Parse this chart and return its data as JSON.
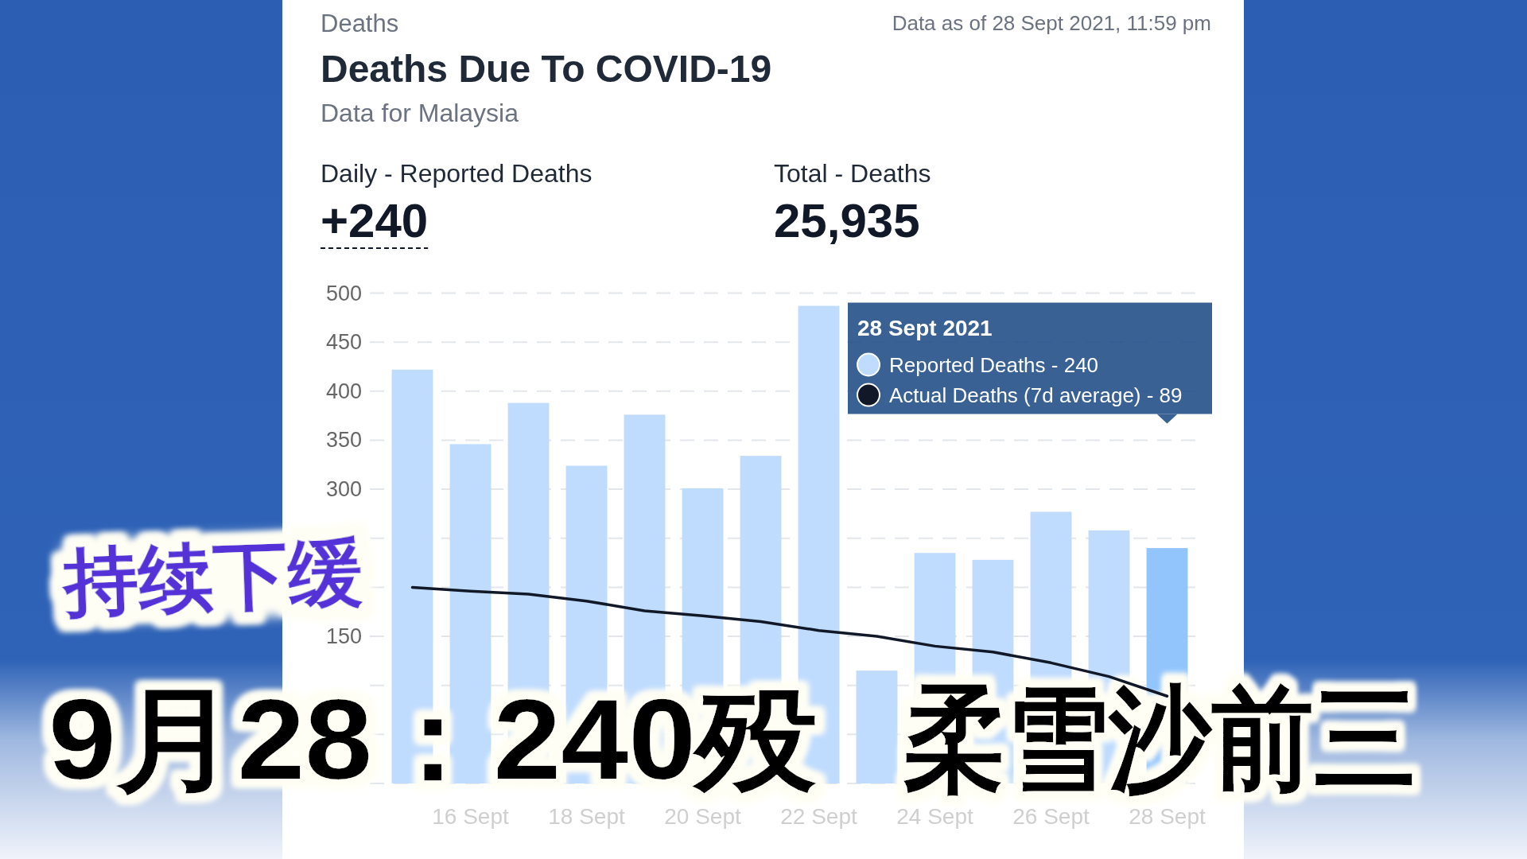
{
  "chart_data": {
    "type": "bar",
    "title": "Deaths Due To COVID-19",
    "subtitle": "Data for Malaysia",
    "annotations": [
      "Deaths",
      "Data as of 28 Sept 2021, 11:59 pm",
      "Daily - Reported Deaths",
      "+240",
      "Total - Deaths",
      "25,935",
      "持续下缓",
      "9月28：240殁",
      "柔雪沙前三"
    ],
    "legend_title": "28 Sept 2021",
    "categories": [
      null,
      "16 Sept",
      null,
      "18 Sept",
      null,
      "20 Sept",
      null,
      "22 Sept",
      null,
      "24 Sept",
      null,
      "26 Sept",
      null,
      "28 Sept"
    ],
    "series": [
      {
        "name": "Reported Deaths - 240",
        "color": "#bfdbfe",
        "colors": [
          "#bfdbfe",
          "#bfdbfe",
          "#bfdbfe",
          "#bfdbfe",
          "#bfdbfe",
          "#bfdbfe",
          "#bfdbfe",
          "#bfdbfe",
          "#bfdbfe",
          "#bfdbfe",
          "#bfdbfe",
          "#bfdbfe",
          "#bfdbfe",
          "#93c5fd"
        ],
        "values": [
          422,
          346,
          388,
          324,
          376,
          301,
          334,
          487,
          115,
          235,
          228,
          277,
          258,
          240
        ]
      },
      {
        "name": "Actual Deaths (7d average) - 89",
        "type": "line",
        "color": "#111827",
        "values": [
          200,
          196,
          193,
          186,
          176,
          171,
          165,
          156,
          150,
          140,
          134,
          123,
          109,
          89
        ]
      }
    ],
    "ylim": [
      0,
      500
    ],
    "yticks": [
      {
        "value": 0,
        "label": null
      },
      {
        "value": 50,
        "label": null
      },
      {
        "value": 100,
        "label": null
      },
      150,
      {
        "value": 200,
        "label": null
      },
      {
        "value": 250,
        "label": null
      },
      300,
      350,
      400,
      450,
      500
    ],
    "grid": "y",
    "legend": "top right"
  }
}
